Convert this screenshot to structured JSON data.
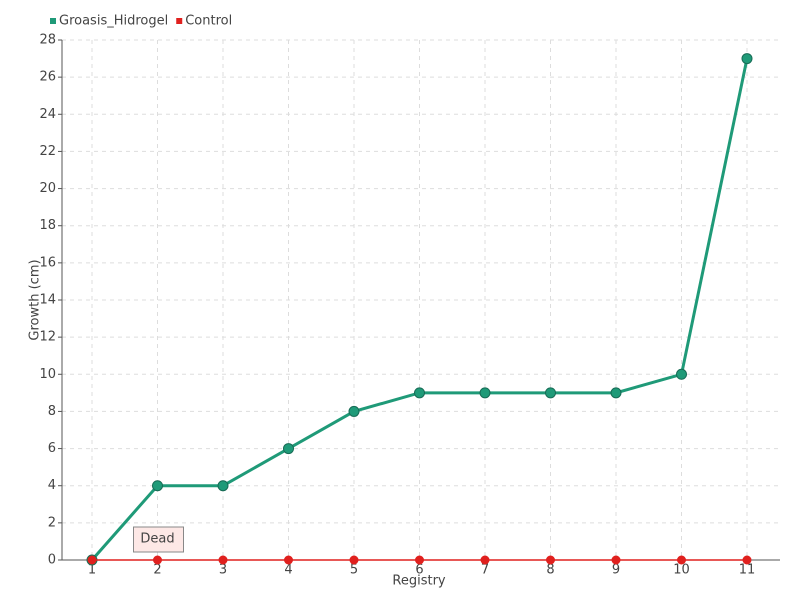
{
  "chart_data": {
    "type": "line",
    "x_label": "Registry",
    "y_label": "Growth (cm)",
    "categories": [
      "1",
      "2",
      "3",
      "4",
      "5",
      "6",
      "7",
      "8",
      "9",
      "10",
      "11"
    ],
    "series": [
      {
        "name": "Groasis_Hidrogel",
        "color": "#1f9a78",
        "values": [
          0,
          4,
          4,
          6,
          8,
          9,
          9,
          9,
          9,
          10,
          27
        ]
      },
      {
        "name": "Control",
        "color": "#e0201e",
        "values": [
          0,
          0,
          0,
          0,
          0,
          0,
          0,
          0,
          0,
          0,
          0
        ]
      }
    ],
    "annotation": "Dead",
    "ylim": [
      0,
      28
    ],
    "yticks": [
      0,
      2,
      4,
      6,
      8,
      10,
      12,
      14,
      16,
      18,
      20,
      22,
      24,
      26,
      28
    ],
    "grid": true,
    "legend": "top-left"
  }
}
